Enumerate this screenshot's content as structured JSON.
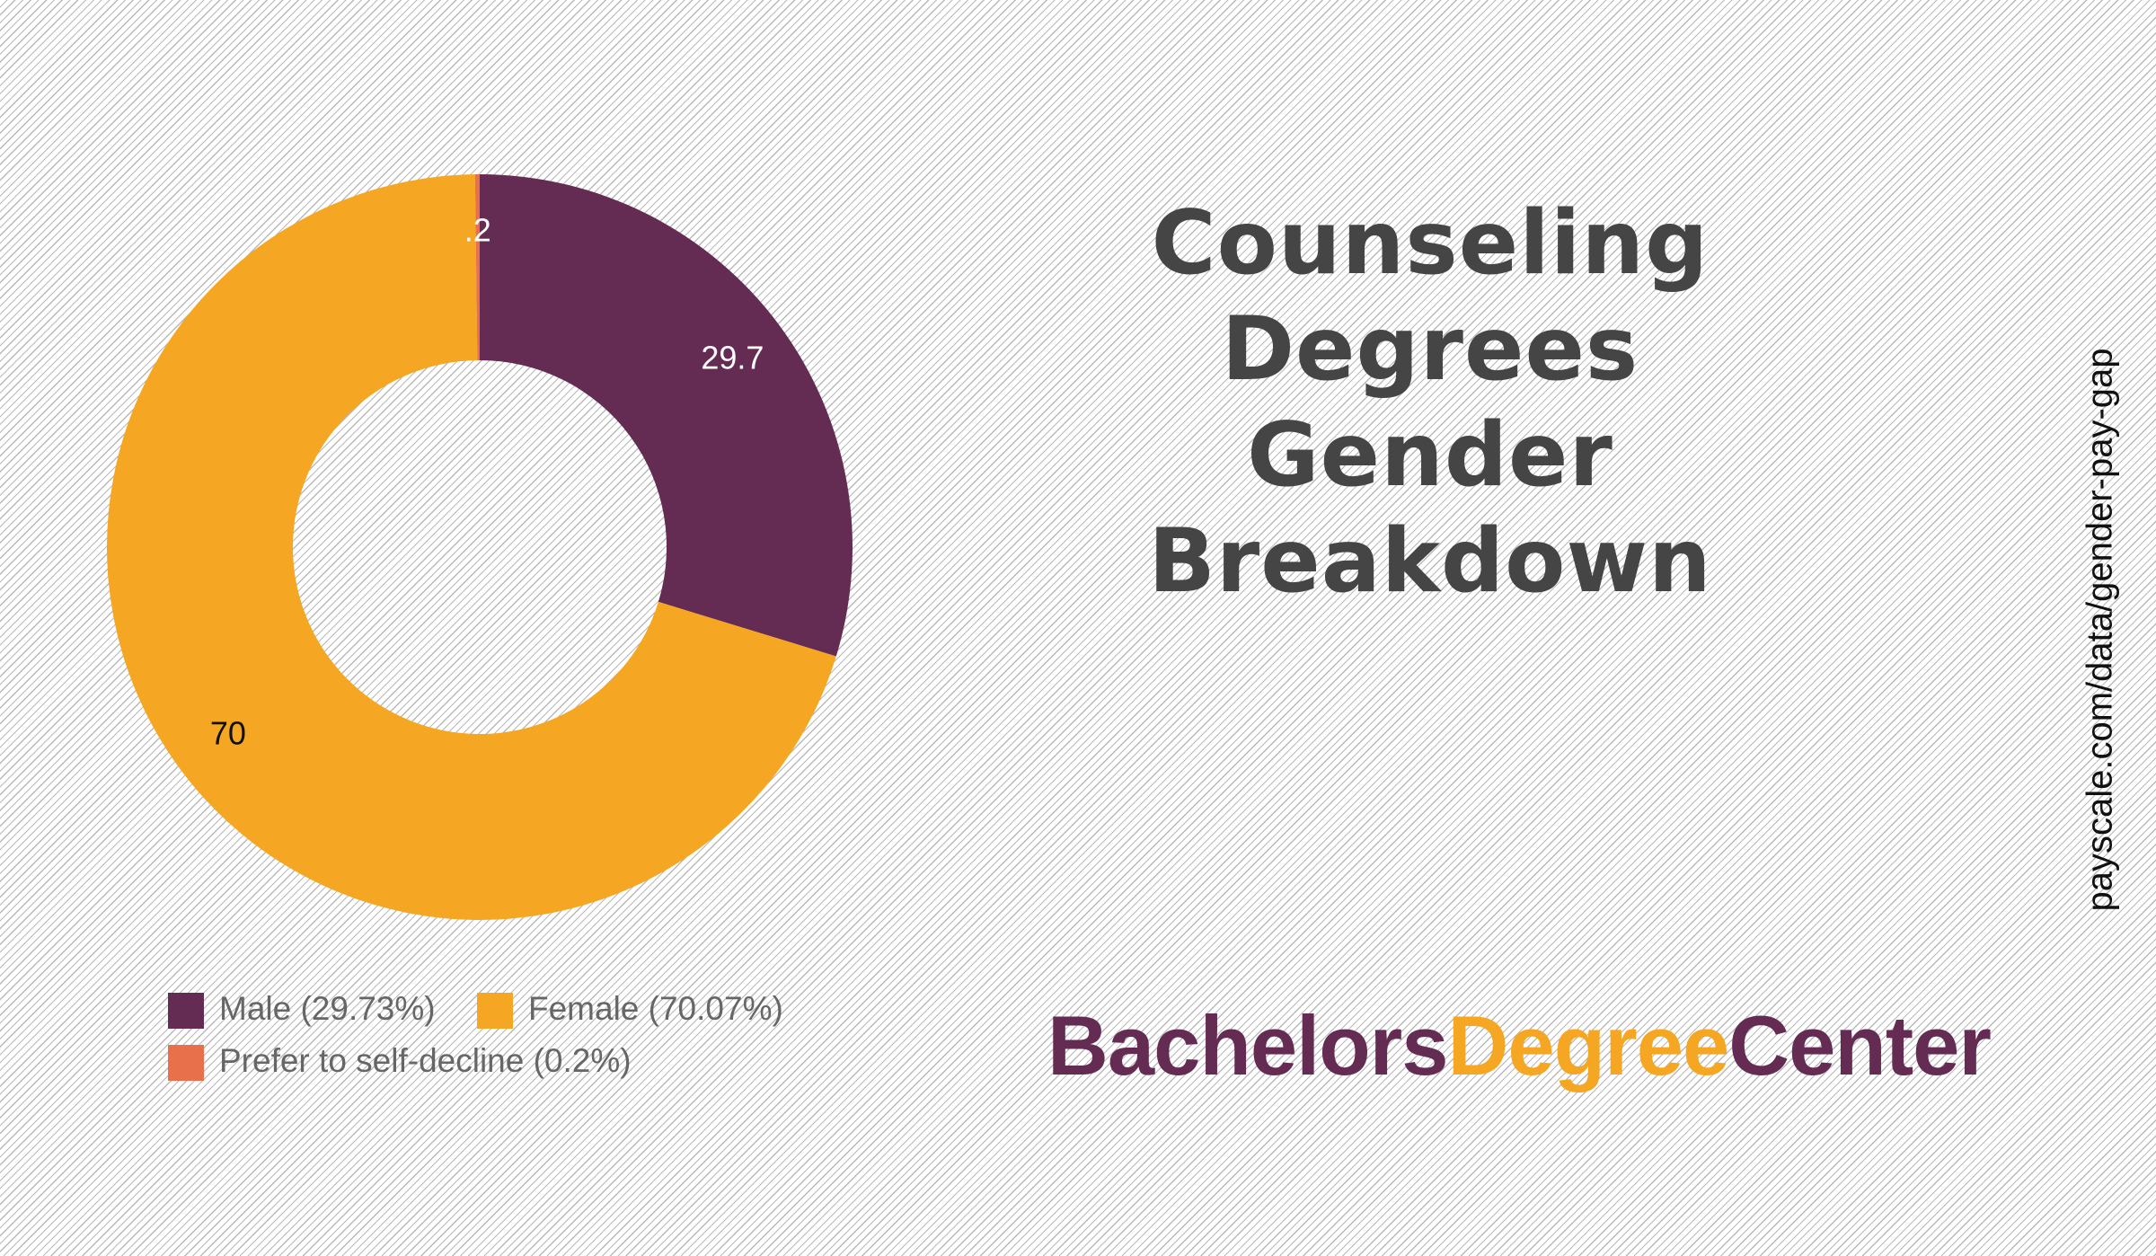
{
  "chart_data": {
    "type": "donut",
    "categories": [
      "Male (29.73%)",
      "Female (70.07%)",
      "Prefer to self-decline (0.2%)"
    ],
    "values": [
      29.73,
      70.07,
      0.2
    ],
    "value_labels": [
      "29.7",
      "70",
      ".2"
    ],
    "colors": [
      "#652c53",
      "#f5a623",
      "#e8704a"
    ]
  },
  "title": "Counseling Degrees Gender Breakdown",
  "brand": [
    "Bachelors",
    "Degree",
    "Center"
  ],
  "source": "payscale.com/data/gender-pay-gap"
}
